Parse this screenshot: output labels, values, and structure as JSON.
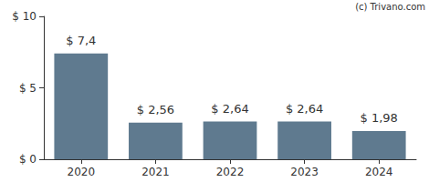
{
  "chart_data": {
    "type": "bar",
    "categories": [
      "2020",
      "2021",
      "2022",
      "2023",
      "2024"
    ],
    "values": [
      7.4,
      2.56,
      2.64,
      2.64,
      1.98
    ],
    "value_labels": [
      "$ 7,4",
      "$ 2,56",
      "$ 2,64",
      "$ 2,64",
      "$ 1,98"
    ],
    "data_labels": true,
    "color": "#5f7a8f",
    "ylim": [
      0,
      10
    ],
    "yticks": [
      {
        "value": 0,
        "label": "$ 0"
      },
      {
        "value": 5,
        "label": "$ 5"
      },
      {
        "value": 10,
        "label": "$ 10"
      }
    ],
    "grid": false,
    "annotations": [
      "(c) Trivano.com"
    ]
  }
}
